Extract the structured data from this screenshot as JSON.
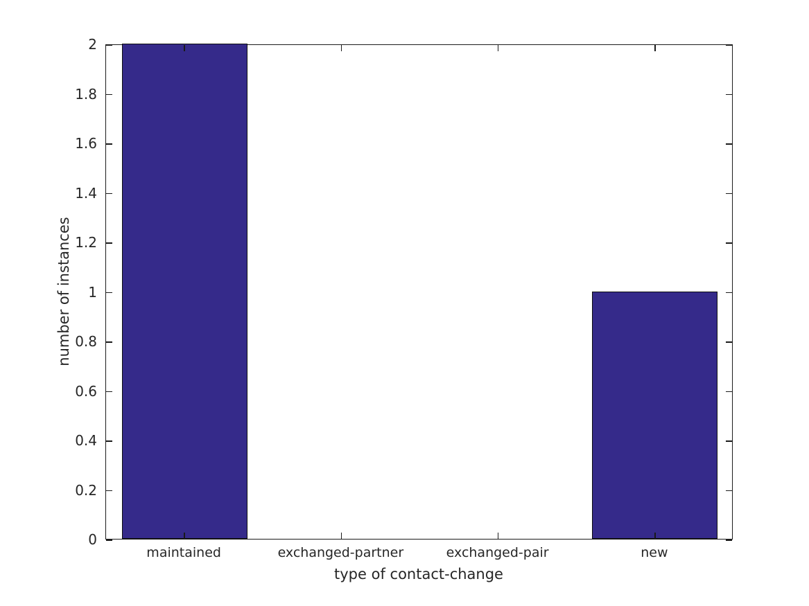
{
  "chart_data": {
    "type": "bar",
    "categories": [
      "maintained",
      "exchanged-partner",
      "exchanged-pair",
      "new"
    ],
    "values": [
      2,
      0,
      0,
      1
    ],
    "title": "",
    "xlabel": "type of contact-change",
    "ylabel": "number of instances",
    "ylim": [
      0,
      2
    ],
    "yticks": [
      0,
      0.2,
      0.4,
      0.6,
      0.8,
      1,
      1.2,
      1.4,
      1.6,
      1.8,
      2
    ],
    "ytick_labels": [
      "0",
      "0.2",
      "0.4",
      "0.6",
      "0.8",
      "1",
      "1.2",
      "1.4",
      "1.6",
      "1.8",
      "2"
    ],
    "bar_color": "#352a8a",
    "bar_edge_color": "#0d0d0d",
    "axis_color": "#1a1a1a",
    "text_color": "#262626",
    "bar_width_fraction": 0.8,
    "grid": false,
    "legend_position": "none",
    "background_color": "#ffffff"
  }
}
